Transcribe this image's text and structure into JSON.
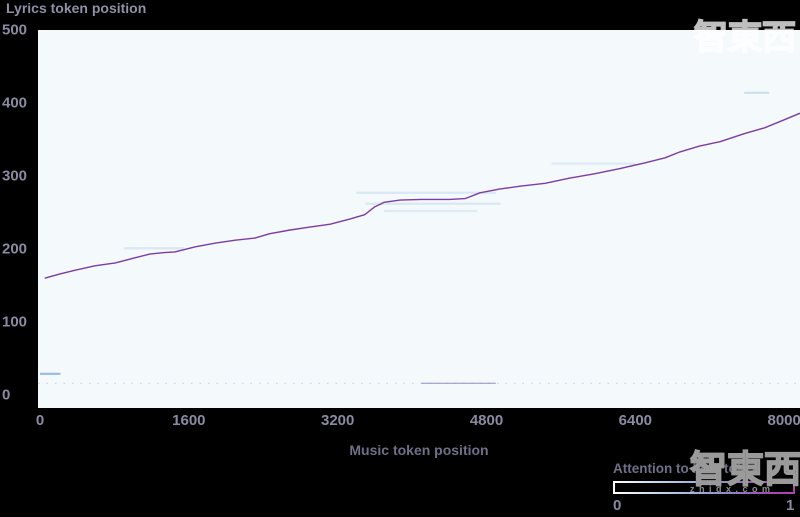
{
  "colors": {
    "background": "#000000",
    "plot_background": "#f4f9fb",
    "line": "#7c3da6",
    "faint_blue": "#9cc0e4",
    "dotted_row": "#b8d2ea",
    "dotted_row_strong": "#9f94cc",
    "tick_text": "#8a8aa2",
    "label_text": "#6f6f88",
    "title_text": "#8f8fa7",
    "colorbar_gradient": [
      "#ffffff",
      "#c3d8ee",
      "#8f9fd0",
      "#9a55b5",
      "#b33fae"
    ]
  },
  "watermark": {
    "logo_text": "智東西",
    "url_text": "zhidx.com"
  },
  "chart_data": {
    "type": "heatmap",
    "title": "Lyrics token position",
    "xlabel": "Music token position",
    "ylabel": "Lyrics token position",
    "xlim": [
      0,
      8170
    ],
    "ylim": [
      0,
      500
    ],
    "xticks": [
      0,
      1600,
      3200,
      4800,
      6400,
      8000
    ],
    "yticks": [
      500,
      400,
      300,
      200,
      100,
      0
    ],
    "grid": false,
    "legend_position": "bottom-right",
    "colorbar": {
      "label": "Attention to lyric token",
      "min_label": "0",
      "max_label": "1"
    },
    "series": [
      {
        "name": "attention-ridge",
        "points": [
          [
            50,
            160
          ],
          [
            220,
            166
          ],
          [
            380,
            171
          ],
          [
            590,
            177
          ],
          [
            810,
            181
          ],
          [
            1020,
            188
          ],
          [
            1180,
            193
          ],
          [
            1320,
            195
          ],
          [
            1450,
            196
          ],
          [
            1670,
            203
          ],
          [
            1880,
            208
          ],
          [
            2100,
            212
          ],
          [
            2310,
            215
          ],
          [
            2470,
            221
          ],
          [
            2690,
            226
          ],
          [
            2900,
            230
          ],
          [
            3120,
            234
          ],
          [
            3330,
            241
          ],
          [
            3490,
            247
          ],
          [
            3600,
            258
          ],
          [
            3700,
            264
          ],
          [
            3870,
            267
          ],
          [
            4100,
            268
          ],
          [
            4400,
            268
          ],
          [
            4570,
            269
          ],
          [
            4730,
            277
          ],
          [
            4940,
            282
          ],
          [
            5160,
            286
          ],
          [
            5430,
            290
          ],
          [
            5690,
            297
          ],
          [
            5960,
            303
          ],
          [
            6230,
            310
          ],
          [
            6500,
            318
          ],
          [
            6720,
            325
          ],
          [
            6880,
            333
          ],
          [
            7090,
            341
          ],
          [
            7310,
            347
          ],
          [
            7570,
            358
          ],
          [
            7790,
            366
          ],
          [
            8000,
            377
          ],
          [
            8170,
            386
          ]
        ]
      }
    ],
    "faint_row": {
      "lyrics_position": 16,
      "stronger_segment_music": [
        4100,
        4900
      ]
    },
    "faint_marks": [
      {
        "music": [
          0,
          220
        ],
        "lyrics": 29,
        "opacity": 0.8,
        "color": "#7fb0dc"
      },
      {
        "music": [
          900,
          1550
        ],
        "lyrics": 201,
        "opacity": 0.3,
        "color": "#9cc0e4"
      },
      {
        "music": [
          3400,
          4900
        ],
        "lyrics": 277,
        "opacity": 0.3,
        "color": "#9cc0e4"
      },
      {
        "music": [
          3500,
          4950
        ],
        "lyrics": 262,
        "opacity": 0.3,
        "color": "#9cc0e4"
      },
      {
        "music": [
          3700,
          4700
        ],
        "lyrics": 252,
        "opacity": 0.25,
        "color": "#9cc0e4"
      },
      {
        "music": [
          5500,
          6400
        ],
        "lyrics": 317,
        "opacity": 0.25,
        "color": "#9cc0e4"
      },
      {
        "music": [
          7570,
          7840
        ],
        "lyrics": 414,
        "opacity": 0.45,
        "color": "#9cc0e4"
      }
    ]
  }
}
